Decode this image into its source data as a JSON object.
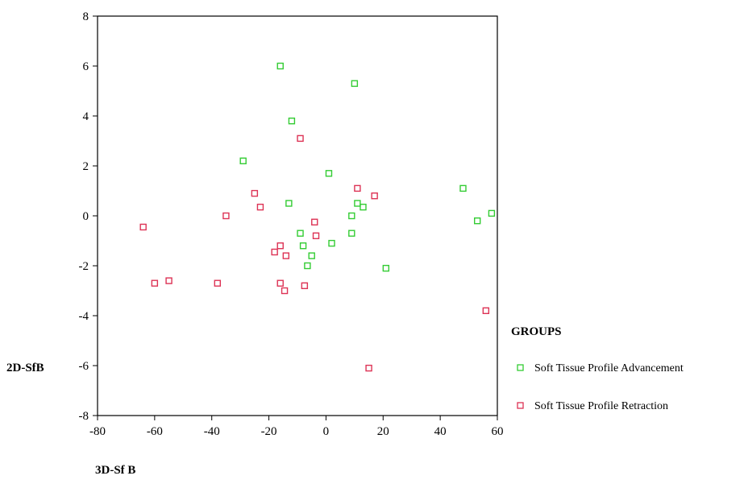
{
  "chart_data": {
    "type": "scatter",
    "title": "",
    "xlabel": "3D-Sf B",
    "ylabel": "2D-SfB",
    "xlim": [
      -80,
      60
    ],
    "ylim": [
      -8,
      8
    ],
    "xticks": [
      -80,
      -60,
      -40,
      -20,
      0,
      20,
      40,
      60
    ],
    "yticks": [
      -8,
      -6,
      -4,
      -2,
      0,
      2,
      4,
      6,
      8
    ],
    "grid": false,
    "legend": {
      "title": "GROUPS",
      "placement": "right"
    },
    "series": [
      {
        "name": "Soft Tissue Profile Advancement",
        "color": "#33cc33",
        "marker": "open-square",
        "points": [
          [
            -16,
            6.0
          ],
          [
            10,
            5.3
          ],
          [
            -12,
            3.8
          ],
          [
            -29,
            2.2
          ],
          [
            1,
            1.7
          ],
          [
            -13,
            0.5
          ],
          [
            11,
            0.5
          ],
          [
            13,
            0.35
          ],
          [
            9,
            0.0
          ],
          [
            48,
            1.1
          ],
          [
            58,
            0.1
          ],
          [
            53,
            -0.2
          ],
          [
            -9,
            -0.7
          ],
          [
            9,
            -0.7
          ],
          [
            2,
            -1.1
          ],
          [
            -8,
            -1.2
          ],
          [
            -5,
            -1.6
          ],
          [
            -6.5,
            -2.0
          ],
          [
            21,
            -2.1
          ]
        ]
      },
      {
        "name": "Soft Tissue Profile Retraction",
        "color": "#dd3355",
        "marker": "open-square",
        "points": [
          [
            -9,
            3.1
          ],
          [
            11,
            1.1
          ],
          [
            17,
            0.8
          ],
          [
            -25,
            0.9
          ],
          [
            -23,
            0.35
          ],
          [
            -35,
            0.0
          ],
          [
            -4,
            -0.25
          ],
          [
            -64,
            -0.45
          ],
          [
            -3.5,
            -0.8
          ],
          [
            -16,
            -1.2
          ],
          [
            -18,
            -1.45
          ],
          [
            -14,
            -1.6
          ],
          [
            -55,
            -2.6
          ],
          [
            -60,
            -2.7
          ],
          [
            -38,
            -2.7
          ],
          [
            -16,
            -2.7
          ],
          [
            -7.5,
            -2.8
          ],
          [
            -14.5,
            -3.0
          ],
          [
            56,
            -3.8
          ],
          [
            15,
            -6.1
          ]
        ]
      }
    ]
  }
}
